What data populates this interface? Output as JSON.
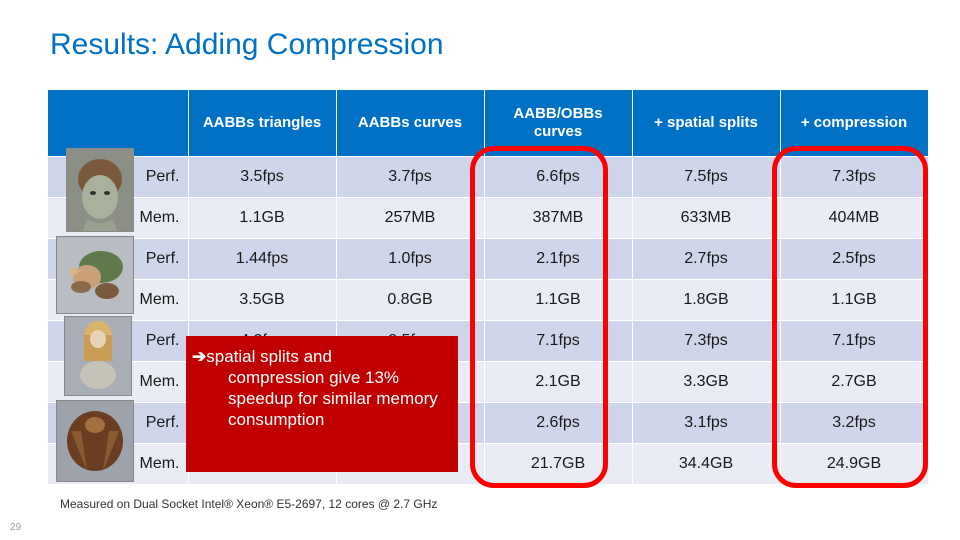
{
  "title": "Results: Adding Compression",
  "table": {
    "headers": [
      "",
      "AABBs triangles",
      "AABBs curves",
      "AABB/OBBs curves",
      "+ spatial splits",
      "+ compression"
    ],
    "rows": [
      [
        "Perf.",
        "3.5fps",
        "3.7fps",
        "6.6fps",
        "7.5fps",
        "7.3fps"
      ],
      [
        "Mem.",
        "1.1GB",
        "257MB",
        "387MB",
        "633MB",
        "404MB"
      ],
      [
        "Perf.",
        "1.44fps",
        "1.0fps",
        "2.1fps",
        "2.7fps",
        "2.5fps"
      ],
      [
        "Mem.",
        "3.5GB",
        "0.8GB",
        "1.1GB",
        "1.8GB",
        "1.1GB"
      ],
      [
        "Perf.",
        "4.2fps",
        "3.5fps",
        "7.1fps",
        "7.3fps",
        "7.1fps"
      ],
      [
        "Mem.",
        "",
        "",
        "2.1GB",
        "3.3GB",
        "2.7GB"
      ],
      [
        "Perf.",
        "",
        "",
        "2.6fps",
        "3.1fps",
        "3.2fps"
      ],
      [
        "Mem.",
        "",
        "",
        "21.7GB",
        "34.4GB",
        "24.9GB"
      ]
    ]
  },
  "callout": {
    "arrow": "➔",
    "line1": "spatial splits and",
    "rest": "compression give 13% speedup for similar memory consumption"
  },
  "footnote": "Measured on Dual Socket Intel® Xeon® E5-2697, 12 cores @ 2.7 GHz",
  "page_number": "29",
  "colors": {
    "title": "#0071c5",
    "header": "#0071c5",
    "row_dark": "#cfd5ea",
    "row_light": "#e9ebf5",
    "highlight": "#ff0000",
    "callout": "#c00000"
  },
  "thumbnails": [
    "character-troll-icon",
    "character-creature-icon",
    "character-girl-icon",
    "character-bird-icon"
  ]
}
